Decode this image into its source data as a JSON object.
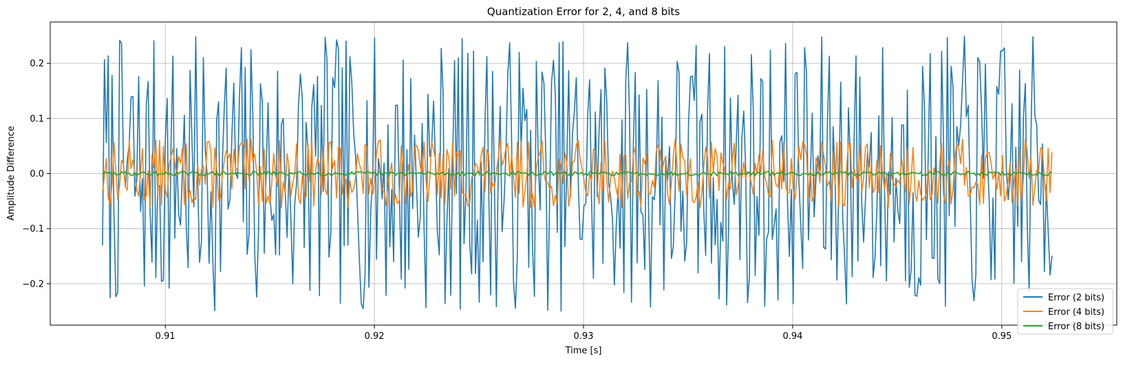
{
  "chart_data": {
    "type": "line",
    "title": "Quantization Error for 2, 4, and 8 bits",
    "xlabel": "Time [s]",
    "ylabel": "Amplitude Difference",
    "xlim": [
      0.9045,
      0.9555
    ],
    "ylim": [
      -0.275,
      0.275
    ],
    "x_start": 0.907,
    "x_end": 0.9524,
    "num_points": 500,
    "x_ticks": [
      0.91,
      0.92,
      0.93,
      0.94,
      0.95
    ],
    "x_tick_labels": [
      "0.91",
      "0.92",
      "0.93",
      "0.94",
      "0.95"
    ],
    "y_ticks": [
      -0.2,
      -0.1,
      0.0,
      0.1,
      0.2
    ],
    "y_tick_labels": [
      "−0.2",
      "−0.1",
      "0.0",
      "0.1",
      "0.2"
    ],
    "grid": true,
    "legend_position": "bottom-right",
    "series": [
      {
        "name": "Error (2 bits)",
        "color": "#1f77b4",
        "amplitude": 0.25,
        "seed": 7
      },
      {
        "name": "Error (4 bits)",
        "color": "#ff7f0e",
        "amplitude": 0.0625,
        "seed": 13
      },
      {
        "name": "Error (8 bits)",
        "color": "#2ca02c",
        "amplitude": 0.0039,
        "seed": 29
      }
    ]
  }
}
